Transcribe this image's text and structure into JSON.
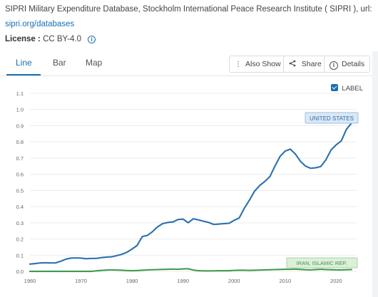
{
  "source": {
    "line1": "SIPRI Military Expenditure Database, Stockholm International Peace Research Institute ( SIPRI ), url:",
    "line2": "sipri.org/databases",
    "license_label": "License :",
    "license_value": "CC BY-4.0"
  },
  "tabs": [
    {
      "label": "Line",
      "active": true
    },
    {
      "label": "Bar",
      "active": false
    },
    {
      "label": "Map",
      "active": false
    }
  ],
  "toolbar": {
    "also_show": "Also Show",
    "share": "Share",
    "details": "Details"
  },
  "label_toggle": {
    "label": "LABEL",
    "checked": true
  },
  "colors": {
    "accent": "#1a6fb0",
    "united_states": "#2a6fad",
    "iran": "#3f9a4e",
    "us_label_bg": "#dbe8f5",
    "iran_label_bg": "#dcefd8"
  },
  "chart_data": {
    "type": "line",
    "x": [
      1960,
      1961,
      1962,
      1963,
      1964,
      1965,
      1966,
      1967,
      1968,
      1969,
      1970,
      1971,
      1972,
      1973,
      1974,
      1975,
      1976,
      1977,
      1978,
      1979,
      1980,
      1981,
      1982,
      1983,
      1984,
      1985,
      1986,
      1987,
      1988,
      1989,
      1990,
      1991,
      1992,
      1993,
      1994,
      1995,
      1996,
      1997,
      1998,
      1999,
      2000,
      2001,
      2002,
      2003,
      2004,
      2005,
      2006,
      2007,
      2008,
      2009,
      2010,
      2011,
      2012,
      2013,
      2014,
      2015,
      2016,
      2017,
      2018,
      2019,
      2020,
      2021,
      2022,
      2023
    ],
    "series": [
      {
        "name": "UNITED STATES",
        "color": "#2a6fad",
        "values": [
          0.045,
          0.048,
          0.052,
          0.053,
          0.052,
          0.052,
          0.062,
          0.075,
          0.082,
          0.083,
          0.082,
          0.078,
          0.08,
          0.08,
          0.085,
          0.088,
          0.09,
          0.097,
          0.105,
          0.118,
          0.138,
          0.16,
          0.215,
          0.222,
          0.245,
          0.275,
          0.295,
          0.302,
          0.305,
          0.32,
          0.323,
          0.3,
          0.325,
          0.318,
          0.31,
          0.302,
          0.29,
          0.292,
          0.295,
          0.297,
          0.315,
          0.33,
          0.39,
          0.44,
          0.495,
          0.53,
          0.555,
          0.585,
          0.65,
          0.71,
          0.743,
          0.755,
          0.725,
          0.68,
          0.65,
          0.637,
          0.64,
          0.648,
          0.69,
          0.75,
          0.782,
          0.806,
          0.877,
          0.916
        ]
      },
      {
        "name": "IRAN, ISLAMIC REP.",
        "color": "#3f9a4e",
        "values": [
          0.0,
          0.0,
          0.0,
          0.0,
          0.0,
          0.0,
          0.0,
          0.0,
          0.0,
          0.0,
          0.0,
          0.0,
          0.0,
          0.003,
          0.006,
          0.008,
          0.009,
          0.008,
          0.007,
          0.005,
          0.004,
          0.005,
          0.007,
          0.009,
          0.01,
          0.011,
          0.012,
          0.013,
          0.014,
          0.013,
          0.015,
          0.016,
          0.008,
          0.004,
          0.003,
          0.003,
          0.003,
          0.004,
          0.004,
          0.004,
          0.006,
          0.007,
          0.007,
          0.006,
          0.007,
          0.008,
          0.009,
          0.01,
          0.011,
          0.012,
          0.013,
          0.013,
          0.014,
          0.012,
          0.01,
          0.009,
          0.011,
          0.013,
          0.011,
          0.01,
          0.009,
          0.009,
          0.01,
          0.011
        ]
      }
    ],
    "xticks": [
      1960,
      1970,
      1980,
      1990,
      2000,
      2010,
      2020
    ],
    "yticks": [
      0.0,
      0.1,
      0.2,
      0.3,
      0.4,
      0.5,
      0.6,
      0.7,
      0.8,
      0.9,
      1.0,
      1.1
    ],
    "ytick_labels": [
      "0.0",
      "0.1",
      "0.2",
      "0.3",
      "0.4",
      "0.5",
      "0.6",
      "0.7",
      "0.8",
      "0.9",
      "1.0",
      "1.1"
    ],
    "xlim": [
      1960,
      2024
    ],
    "ylim": [
      0,
      1.1
    ],
    "grid": true,
    "title": "",
    "xlabel": "",
    "ylabel": ""
  }
}
